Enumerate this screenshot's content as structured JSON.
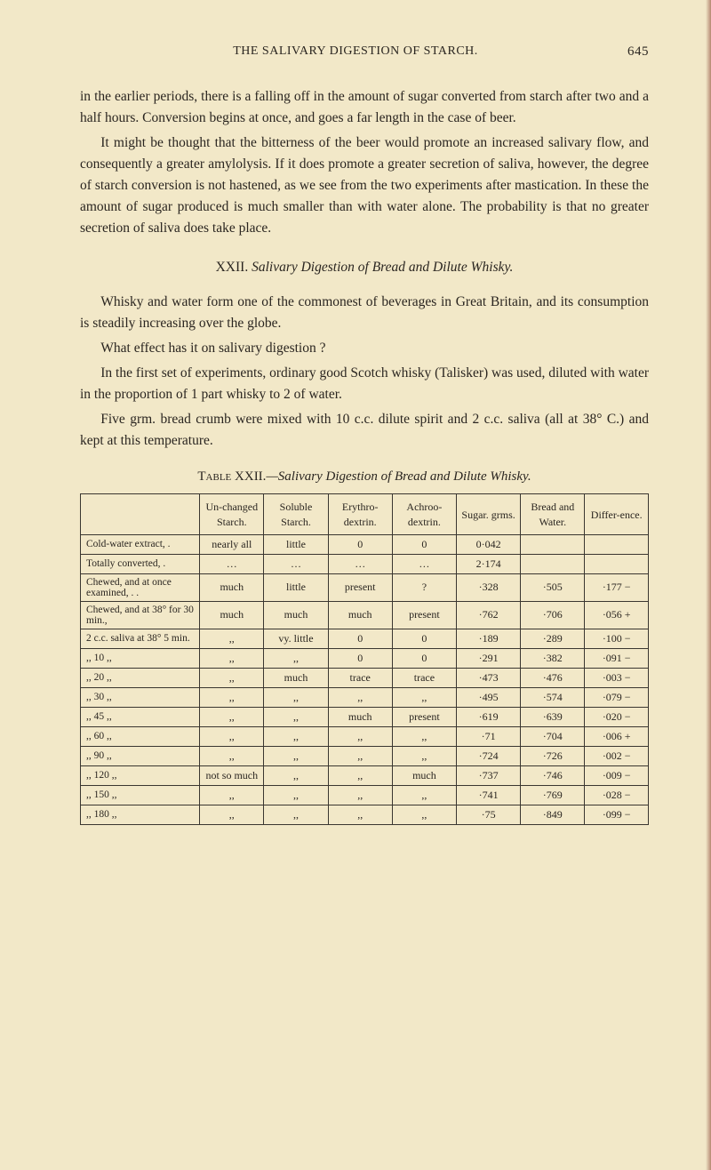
{
  "page_number": "645",
  "running_head": "THE SALIVARY DIGESTION OF STARCH.",
  "paragraphs": {
    "p1": "in the earlier periods, there is a falling off in the amount of sugar converted from starch after two and a half hours. Conversion begins at once, and goes a far length in the case of beer.",
    "p2": "It might be thought that the bitterness of the beer would promote an increased salivary flow, and consequently a greater amylolysis. If it does promote a greater secretion of saliva, however, the degree of starch conversion is not hastened, as we see from the two experiments after mastication. In these the amount of sugar produced is much smaller than with water alone. The probability is that no greater secretion of saliva does take place.",
    "section_roman": "XXII.",
    "section_title": " Salivary Digestion of Bread and Dilute Whisky.",
    "p3": "Whisky and water form one of the commonest of beverages in Great Britain, and its consumption is steadily increasing over the globe.",
    "p4": "What effect has it on salivary digestion ?",
    "p5": "In the first set of experiments, ordinary good Scotch whisky (Talisker) was used, diluted with water in the proportion of 1 part whisky to 2 of water.",
    "p6": "Five grm. bread crumb were mixed with 10 c.c. dilute spirit and 2 c.c. saliva (all at 38° C.) and kept at this temperature."
  },
  "table": {
    "caption_label": "Table XXII.",
    "caption_rest": "—Salivary Digestion of Bread and Dilute Whisky.",
    "headers": [
      "",
      "Un-changed Starch.",
      "Soluble Starch.",
      "Erythro-dextrin.",
      "Achroo-dextrin.",
      "Sugar. grms.",
      "Bread and Water.",
      "Differ-ence."
    ],
    "rows": [
      {
        "label": "Cold-water extract, .",
        "cells": [
          "nearly all",
          "little",
          "0",
          "0",
          "0·042",
          "",
          ""
        ]
      },
      {
        "label": "Totally converted, .",
        "cells": [
          "…",
          "…",
          "…",
          "…",
          "2·174",
          "",
          ""
        ]
      },
      {
        "label": "Chewed, and at once examined, .  .",
        "cells": [
          "much",
          "little",
          "present",
          "?",
          "·328",
          "·505",
          "·177 −"
        ]
      },
      {
        "label": "Chewed, and at 38° for 30 min.,",
        "cells": [
          "much",
          "much",
          "much",
          "present",
          "·762",
          "·706",
          "·056 +"
        ]
      },
      {
        "label": "2 c.c. saliva at 38° 5 min.",
        "cells": [
          ",,",
          "vy. little",
          "0",
          "0",
          "·189",
          "·289",
          "·100 −"
        ]
      },
      {
        "label": ",,      10   ,,",
        "cells": [
          ",,",
          ",,",
          "0",
          "0",
          "·291",
          "·382",
          "·091 −"
        ]
      },
      {
        "label": ",,      20   ,,",
        "cells": [
          ",,",
          "much",
          "trace",
          "trace",
          "·473",
          "·476",
          "·003 −"
        ]
      },
      {
        "label": ",,      30   ,,",
        "cells": [
          ",,",
          ",,",
          ",,",
          ",,",
          "·495",
          "·574",
          "·079 −"
        ]
      },
      {
        "label": ",,      45   ,,",
        "cells": [
          ",,",
          ",,",
          "much",
          "present",
          "·619",
          "·639",
          "·020 −"
        ]
      },
      {
        "label": ",,      60   ,,",
        "cells": [
          ",,",
          ",,",
          ",,",
          ",,",
          "·71",
          "·704",
          "·006 +"
        ]
      },
      {
        "label": ",,      90   ,,",
        "cells": [
          ",,",
          ",,",
          ",,",
          ",,",
          "·724",
          "·726",
          "·002 −"
        ]
      },
      {
        "label": ",,    120   ,,",
        "cells": [
          "not so much",
          ",,",
          ",,",
          "much",
          "·737",
          "·746",
          "·009 −"
        ]
      },
      {
        "label": ",,    150   ,,",
        "cells": [
          ",,",
          ",,",
          ",,",
          ",,",
          "·741",
          "·769",
          "·028 −"
        ]
      },
      {
        "label": ",,    180   ,,",
        "cells": [
          ",,",
          ",,",
          ",,",
          ",,",
          "·75",
          "·849",
          "·099 −"
        ]
      }
    ]
  },
  "colors": {
    "background": "#f2e8c8",
    "text": "#2a2520",
    "border": "#3a3630"
  }
}
